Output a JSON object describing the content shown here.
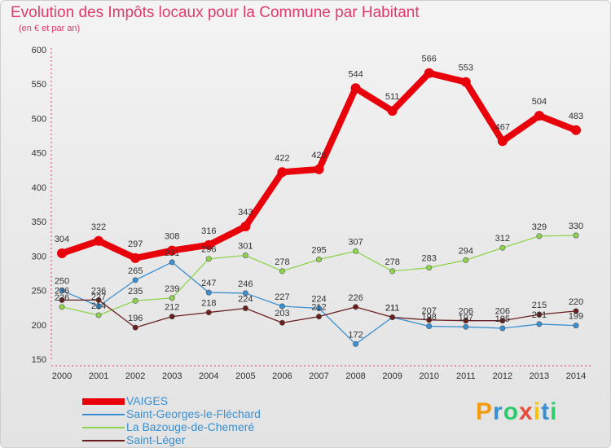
{
  "header": {
    "title": "Evolution des Impôts locaux pour la Commune par Habitant",
    "subtitle": "(en € et par an)"
  },
  "logo": {
    "text": "Proxiti",
    "colors": [
      "#f39c12",
      "#3a8fd1",
      "#2ecc71",
      "#e74c3c",
      "#f1c40f",
      "#3a8fd1",
      "#2ecc71"
    ]
  },
  "chart_data": {
    "type": "line",
    "title": "Evolution des Impôts locaux pour la Commune par Habitant",
    "subtitle": "(en € et par an)",
    "x": [
      "2000",
      "2001",
      "2002",
      "2003",
      "2004",
      "2005",
      "2006",
      "2007",
      "2008",
      "2009",
      "2010",
      "2011",
      "2012",
      "2013",
      "2014"
    ],
    "ylim": [
      150,
      600
    ],
    "yticks": [
      150,
      200,
      250,
      300,
      350,
      400,
      450,
      500,
      550,
      600
    ],
    "grid": false,
    "legend_position": "bottom-left",
    "series": [
      {
        "name": "VAIGES",
        "color": "#e8000b",
        "emphasis": true,
        "values": [
          304,
          322,
          297,
          308,
          316,
          343,
          422,
          426,
          544,
          511,
          566,
          553,
          467,
          504,
          483
        ],
        "labels": [
          "304",
          "322",
          "297",
          "308",
          "316",
          "343",
          "422",
          "426",
          "544",
          "511",
          "566",
          "553",
          "467",
          "504",
          "483"
        ]
      },
      {
        "name": "Saint-Georges-le-Fléchard",
        "color": "#3a8fd1",
        "values": [
          250,
          227,
          265,
          291,
          247,
          246,
          227,
          224,
          172,
          211,
          198,
          197,
          195,
          201,
          199
        ],
        "labels": [
          "250",
          "227",
          "265",
          "291",
          "247",
          "246",
          "227",
          "224",
          "172",
          "211",
          "198",
          "197",
          "195",
          "201",
          "199"
        ]
      },
      {
        "name": "La Bazouge-de-Chemeré",
        "color": "#8ed44f",
        "values": [
          226,
          214,
          235,
          239,
          296,
          301,
          278,
          295,
          307,
          278,
          283,
          294,
          312,
          329,
          330
        ],
        "labels": [
          "226",
          "214",
          "235",
          "239",
          "296",
          "301",
          "278",
          "295",
          "307",
          "278",
          "283",
          "294",
          "312",
          "329",
          "330"
        ]
      },
      {
        "name": "Saint-Léger",
        "color": "#6b1e1e",
        "values": [
          236,
          236,
          196,
          212,
          218,
          224,
          203,
          212,
          226,
          211,
          207,
          206,
          206,
          215,
          220
        ],
        "labels": [
          "236",
          "236",
          "196",
          "212",
          "218",
          "224",
          "203",
          "212",
          "226",
          "211",
          "207",
          "206",
          "206",
          "215",
          "220"
        ]
      }
    ]
  }
}
